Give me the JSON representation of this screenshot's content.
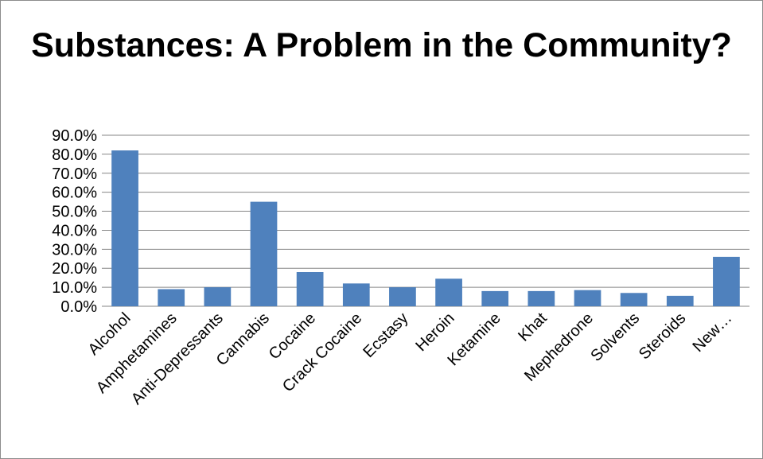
{
  "chart_data": {
    "type": "bar",
    "title": "Substances: A Problem in the Community?",
    "xlabel": "",
    "ylabel": "",
    "categories": [
      "Alcohol",
      "Amphetamines",
      "Anti-Depressants",
      "Cannabis",
      "Cocaine",
      "Crack Cocaine",
      "Ecstasy",
      "Heroin",
      "Ketamine",
      "Khat",
      "Mephedrone",
      "Solvents",
      "Steroids",
      "New…"
    ],
    "values": [
      82.0,
      9.0,
      10.0,
      55.0,
      18.0,
      12.0,
      10.0,
      14.5,
      8.0,
      8.0,
      8.5,
      7.0,
      5.5,
      26.0
    ],
    "ylim": [
      0,
      90
    ],
    "ytick_step": 10,
    "ytick_labels": [
      "0.0%",
      "10.0%",
      "20.0%",
      "30.0%",
      "40.0%",
      "50.0%",
      "60.0%",
      "70.0%",
      "80.0%",
      "90.0%"
    ],
    "grid": true,
    "legend": "none",
    "bar_color": "#4f81bd",
    "grid_color": "#868686"
  }
}
